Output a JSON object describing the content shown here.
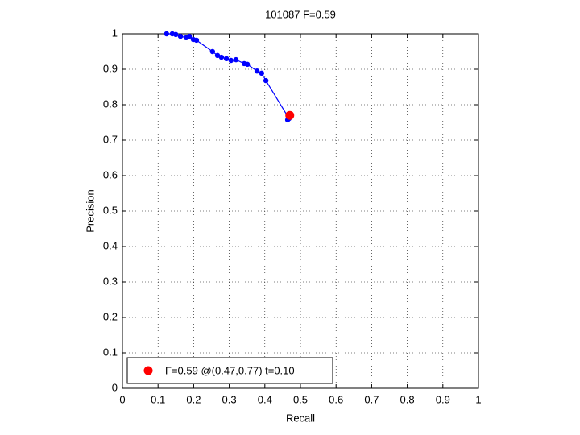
{
  "chart_data": {
    "type": "line",
    "title": "101087 F=0.59",
    "xlabel": "Recall",
    "ylabel": "Precision",
    "xlim": [
      0,
      1
    ],
    "ylim": [
      0,
      1
    ],
    "xticks": [
      0,
      0.1,
      0.2,
      0.3,
      0.4,
      0.5,
      0.6,
      0.7,
      0.8,
      0.9,
      1
    ],
    "yticks": [
      0,
      0.1,
      0.2,
      0.3,
      0.4,
      0.5,
      0.6,
      0.7,
      0.8,
      0.9,
      1
    ],
    "grid": true,
    "legend": "lower left",
    "series": [
      {
        "color": "#0000ff",
        "style": "lines+markers",
        "x": [
          0.124,
          0.14,
          0.15,
          0.163,
          0.179,
          0.188,
          0.199,
          0.208,
          0.253,
          0.267,
          0.278,
          0.292,
          0.305,
          0.319,
          0.342,
          0.351,
          0.378,
          0.391,
          0.403,
          0.468,
          0.464
        ],
        "values": [
          1.0,
          1.0,
          0.998,
          0.993,
          0.989,
          0.993,
          0.984,
          0.982,
          0.95,
          0.939,
          0.934,
          0.93,
          0.925,
          0.927,
          0.916,
          0.914,
          0.895,
          0.889,
          0.868,
          0.761,
          0.757
        ]
      },
      {
        "name": "F=0.59 @(0.47,0.77) t=0.10",
        "color": "#ff0000",
        "style": "markers",
        "x": [
          0.47
        ],
        "values": [
          0.77
        ]
      }
    ]
  }
}
